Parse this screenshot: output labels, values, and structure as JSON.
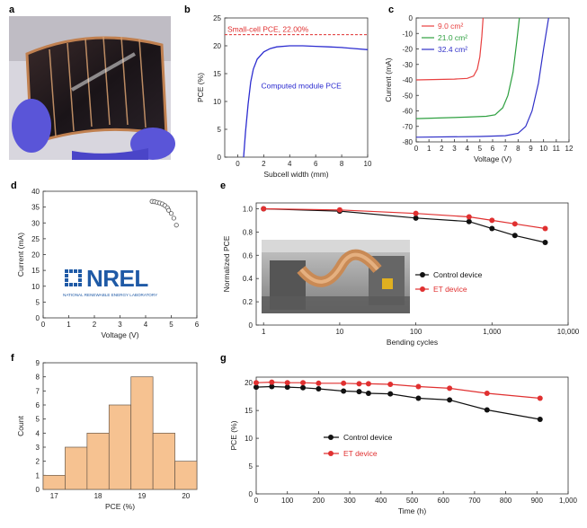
{
  "panel_labels": [
    "a",
    "b",
    "c",
    "d",
    "e",
    "f",
    "g"
  ],
  "nrel": {
    "logo_text": "NREL",
    "tagline": "NATIONAL RENEWABLE ENERGY LABORATORY"
  },
  "colors": {
    "pce_curve": "#2d2dd0",
    "small_cell_line": "#e03030",
    "jv_9": "#e84040",
    "jv_21": "#2ea040",
    "jv_32": "#3030c8",
    "control": "#111111",
    "et": "#e03030",
    "hist_bar": "#f6c291",
    "nrel_blue": "#1f5aa6"
  },
  "chart_data": [
    {
      "id": "b",
      "type": "line",
      "xlabel": "Subcell width (mm)",
      "ylabel": "PCE (%)",
      "xlim": [
        -1,
        10
      ],
      "ylim": [
        0,
        25
      ],
      "xticks": [
        0,
        2,
        4,
        6,
        8,
        10
      ],
      "yticks": [
        0,
        5,
        10,
        15,
        20,
        25
      ],
      "series": [
        {
          "name": "Computed module PCE",
          "x": [
            0.45,
            0.6,
            0.8,
            1.0,
            1.2,
            1.5,
            2.0,
            2.5,
            3.0,
            4.0,
            5.0,
            6.0,
            7.0,
            8.0,
            9.0,
            10.0
          ],
          "y": [
            0,
            4.5,
            9.5,
            13.5,
            15.8,
            17.6,
            18.9,
            19.5,
            19.8,
            20.0,
            20.0,
            19.9,
            19.8,
            19.7,
            19.5,
            19.3
          ]
        }
      ],
      "reference_line": {
        "y": 22.0,
        "label": "Small-cell PCE, 22.00%"
      },
      "grid": false
    },
    {
      "id": "c",
      "type": "line",
      "xlabel": "Voltage (V)",
      "ylabel": "Current (mA)",
      "xlim": [
        0,
        12
      ],
      "ylim": [
        -80,
        0
      ],
      "xticks": [
        0,
        1,
        2,
        3,
        4,
        5,
        6,
        7,
        8,
        9,
        10,
        11,
        12
      ],
      "yticks": [
        0,
        -10,
        -20,
        -30,
        -40,
        -50,
        -60,
        -70,
        -80
      ],
      "legend_position": "top-left",
      "series": [
        {
          "name": "9.0 cm²",
          "x": [
            0,
            3.0,
            4.0,
            4.5,
            4.8,
            5.0,
            5.15,
            5.25
          ],
          "y": [
            -40,
            -39.5,
            -39,
            -37.5,
            -33,
            -25,
            -12,
            0
          ]
        },
        {
          "name": "21.0 cm²",
          "x": [
            0,
            4.0,
            5.5,
            6.2,
            6.8,
            7.2,
            7.6,
            7.9,
            8.1
          ],
          "y": [
            -65,
            -64,
            -63.5,
            -62.5,
            -58,
            -50,
            -35,
            -15,
            0
          ]
        },
        {
          "name": "32.4 cm²",
          "x": [
            0,
            5.0,
            7.0,
            8.0,
            8.6,
            9.1,
            9.6,
            10.0,
            10.4
          ],
          "y": [
            -77,
            -76.5,
            -76,
            -74.5,
            -70,
            -60,
            -42,
            -20,
            0
          ]
        }
      ],
      "grid": false
    },
    {
      "id": "d",
      "type": "scatter",
      "xlabel": "Voltage (V)",
      "ylabel": "Current (mA)",
      "xlim": [
        0,
        6
      ],
      "ylim": [
        0,
        40
      ],
      "xticks": [
        0,
        1,
        2,
        3,
        4,
        5,
        6
      ],
      "yticks": [
        0,
        5,
        10,
        15,
        20,
        25,
        30,
        35,
        40
      ],
      "series": [
        {
          "x": [
            4.25,
            4.35,
            4.45,
            4.55,
            4.65,
            4.75,
            4.85,
            4.9,
            5.0,
            5.1,
            5.2
          ],
          "y": [
            36.8,
            36.7,
            36.5,
            36.3,
            36.0,
            35.5,
            34.8,
            34.0,
            33.0,
            31.5,
            29.3
          ]
        }
      ],
      "grid": false
    },
    {
      "id": "e",
      "type": "line",
      "xlabel": "Bending cycles",
      "ylabel": "Normalized PCE",
      "xscale": "log",
      "xlim": [
        1,
        10000
      ],
      "ylim": [
        0,
        1.05
      ],
      "xticks": [
        1,
        10,
        100,
        1000,
        10000
      ],
      "xticklabels": [
        "1",
        "10",
        "100",
        "1,000",
        "10,000"
      ],
      "yticks": [
        0,
        0.2,
        0.4,
        0.6,
        0.8,
        1.0
      ],
      "yticklabels": [
        "0",
        "0.2",
        "0.4",
        "0.6",
        "0.8",
        "1.0"
      ],
      "legend_position": "center-right",
      "series": [
        {
          "name": "Control device",
          "x": [
            1,
            10,
            100,
            500,
            1000,
            2000,
            5000
          ],
          "y": [
            1.0,
            0.98,
            0.92,
            0.89,
            0.83,
            0.77,
            0.71
          ]
        },
        {
          "name": "ET device",
          "x": [
            1,
            10,
            100,
            500,
            1000,
            2000,
            5000
          ],
          "y": [
            1.0,
            0.99,
            0.96,
            0.93,
            0.9,
            0.87,
            0.83
          ]
        }
      ],
      "grid": false
    },
    {
      "id": "f",
      "type": "bar",
      "xlabel": "PCE (%)",
      "ylabel": "Count",
      "categories": [
        "16.75",
        "17.25",
        "17.75",
        "18.25",
        "18.75",
        "19.25",
        "19.75"
      ],
      "values": [
        1,
        3,
        4,
        6,
        8,
        4,
        2
      ],
      "bin_width": 0.5,
      "xlim": [
        16.75,
        20.25
      ],
      "ylim": [
        0,
        9
      ],
      "xticks": [
        17,
        18,
        19,
        20
      ],
      "yticks": [
        0,
        1,
        2,
        3,
        4,
        5,
        6,
        7,
        8,
        9
      ],
      "grid": false
    },
    {
      "id": "g",
      "type": "line",
      "xlabel": "Time (h)",
      "ylabel": "PCE (%)",
      "xlim": [
        0,
        1000
      ],
      "ylim": [
        0,
        21
      ],
      "xticks": [
        0,
        100,
        200,
        300,
        400,
        500,
        600,
        700,
        800,
        900,
        1000
      ],
      "xticklabels": [
        "0",
        "100",
        "200",
        "300",
        "400",
        "500",
        "600",
        "700",
        "800",
        "900",
        "1,000"
      ],
      "yticks": [
        0,
        5,
        10,
        15,
        20
      ],
      "legend_position": "center-left",
      "series": [
        {
          "name": "Control device",
          "x": [
            0,
            50,
            100,
            150,
            200,
            280,
            330,
            360,
            430,
            520,
            620,
            740,
            910
          ],
          "y": [
            19.2,
            19.3,
            19.2,
            19.1,
            18.9,
            18.5,
            18.4,
            18.1,
            18.0,
            17.2,
            16.9,
            15.1,
            13.4
          ]
        },
        {
          "name": "ET device",
          "x": [
            0,
            50,
            100,
            150,
            200,
            280,
            330,
            360,
            430,
            520,
            620,
            740,
            910
          ],
          "y": [
            20.0,
            20.1,
            20.0,
            20.0,
            19.9,
            19.9,
            19.8,
            19.8,
            19.7,
            19.3,
            19.0,
            18.1,
            17.2
          ]
        }
      ],
      "grid": false
    }
  ]
}
